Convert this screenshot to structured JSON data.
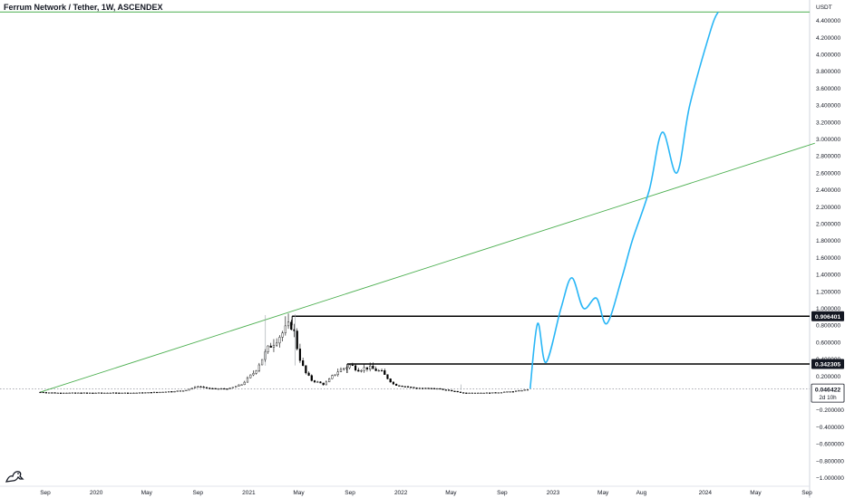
{
  "chart": {
    "title": "Ferrum Network / Tether, 1W, ASCENDEX",
    "currency": "USDT"
  },
  "price_labels": {
    "last": "0.046422",
    "countdown": "2d 10h",
    "level_upper": "0.906401",
    "level_lower": "0.342305"
  },
  "icons": {
    "brand": "tradingview-logo-icon"
  },
  "colors": {
    "background": "#ffffff",
    "candles": "#000000",
    "trendline": "#4caf50",
    "projection": "#29b6f6",
    "horizontal_levels": "#000000",
    "axis_text": "#131722"
  },
  "chart_data": {
    "type": "candlestick",
    "title": "Ferrum Network / Tether, 1W, ASCENDEX",
    "y_axis": {
      "unit": "USDT",
      "range": [
        -1.0,
        4.5
      ],
      "ticks": [
        4.4,
        4.2,
        4.0,
        3.8,
        3.6,
        3.4,
        3.2,
        3.0,
        2.8,
        2.6,
        2.4,
        2.2,
        2.0,
        1.8,
        1.6,
        1.4,
        1.2,
        1.0,
        0.8,
        0.6,
        0.4,
        0.2,
        0.0,
        -0.2,
        -0.4,
        -0.6,
        -0.8,
        -1.0
      ],
      "tick_labels": [
        "4.400000",
        "4.200000",
        "4.000000",
        "3.800000",
        "3.600000",
        "3.400000",
        "3.200000",
        "3.000000",
        "2.800000",
        "2.600000",
        "2.400000",
        "2.200000",
        "2.000000",
        "1.800000",
        "1.600000",
        "1.400000",
        "1.200000",
        "1.000000",
        "0.800000",
        "0.600000",
        "0.400000",
        "0.200000",
        "0.000000",
        "−0.200000",
        "−0.400000",
        "−0.600000",
        "−0.800000",
        "−1.000000"
      ]
    },
    "x_axis": {
      "ticks": [
        "2019-09-01",
        "2020-01-01",
        "2020-05-01",
        "2020-09-01",
        "2021-01-01",
        "2021-05-01",
        "2021-09-01",
        "2022-01-01",
        "2022-05-01",
        "2022-09-01",
        "2023-01-01",
        "2023-05-01",
        "2023-08-01",
        "2024-01-01",
        "2024-05-01",
        "2024-09-01"
      ],
      "tick_labels": [
        "Sep",
        "2020",
        "May",
        "Sep",
        "2021",
        "May",
        "Sep",
        "2022",
        "May",
        "Sep",
        "2023",
        "May",
        "Aug",
        "2024",
        "May",
        "Sep"
      ]
    },
    "series": [
      {
        "kind": "candles",
        "approx_close": [
          [
            "2019-08-20",
            0.01
          ],
          [
            "2019-10-01",
            0.0
          ],
          [
            "2019-12-01",
            0.0
          ],
          [
            "2020-02-01",
            0.0
          ],
          [
            "2020-04-01",
            0.0
          ],
          [
            "2020-06-01",
            0.01
          ],
          [
            "2020-08-01",
            0.03
          ],
          [
            "2020-09-01",
            0.08
          ],
          [
            "2020-10-01",
            0.05
          ],
          [
            "2020-11-15",
            0.05
          ],
          [
            "2020-12-15",
            0.1
          ],
          [
            "2021-01-15",
            0.25
          ],
          [
            "2021-02-01",
            0.4
          ],
          [
            "2021-02-20",
            0.55
          ],
          [
            "2021-03-10",
            0.65
          ],
          [
            "2021-04-01",
            0.75
          ],
          [
            "2021-04-15",
            0.82
          ],
          [
            "2021-05-01",
            0.45
          ],
          [
            "2021-05-15",
            0.25
          ],
          [
            "2021-06-01",
            0.15
          ],
          [
            "2021-07-01",
            0.1
          ],
          [
            "2021-08-01",
            0.25
          ],
          [
            "2021-09-01",
            0.33
          ],
          [
            "2021-09-20",
            0.28
          ],
          [
            "2021-10-15",
            0.3
          ],
          [
            "2021-11-15",
            0.25
          ],
          [
            "2021-12-15",
            0.1
          ],
          [
            "2022-02-01",
            0.06
          ],
          [
            "2022-04-01",
            0.05
          ],
          [
            "2022-06-01",
            0.0
          ],
          [
            "2022-08-01",
            0.0
          ],
          [
            "2022-10-01",
            0.02
          ],
          [
            "2022-11-07",
            0.046422
          ]
        ]
      },
      {
        "kind": "projection",
        "points": [
          [
            "2022-11-07",
            0.05
          ],
          [
            "2022-11-25",
            0.82
          ],
          [
            "2022-12-15",
            0.36
          ],
          [
            "2023-01-20",
            1.0
          ],
          [
            "2023-02-15",
            1.36
          ],
          [
            "2023-03-15",
            1.0
          ],
          [
            "2023-04-15",
            1.12
          ],
          [
            "2023-05-10",
            0.82
          ],
          [
            "2023-06-15",
            1.36
          ],
          [
            "2023-07-10",
            1.8
          ],
          [
            "2023-08-20",
            2.4
          ],
          [
            "2023-09-20",
            3.08
          ],
          [
            "2023-10-25",
            2.6
          ],
          [
            "2023-11-25",
            3.4
          ],
          [
            "2024-01-15",
            4.3
          ],
          [
            "2024-02-01",
            4.5
          ]
        ]
      }
    ],
    "trendline": {
      "from": [
        "2019-08-20",
        0.01
      ],
      "to": [
        "2024-09-20",
        2.95
      ]
    },
    "horizontal_levels": [
      {
        "value": 0.906401,
        "from": "2021-04-15"
      },
      {
        "value": 0.342305,
        "from": "2021-08-25"
      },
      {
        "value": 4.5,
        "from": "2019-08-01"
      }
    ],
    "last_price": 0.046422,
    "grid": false
  }
}
